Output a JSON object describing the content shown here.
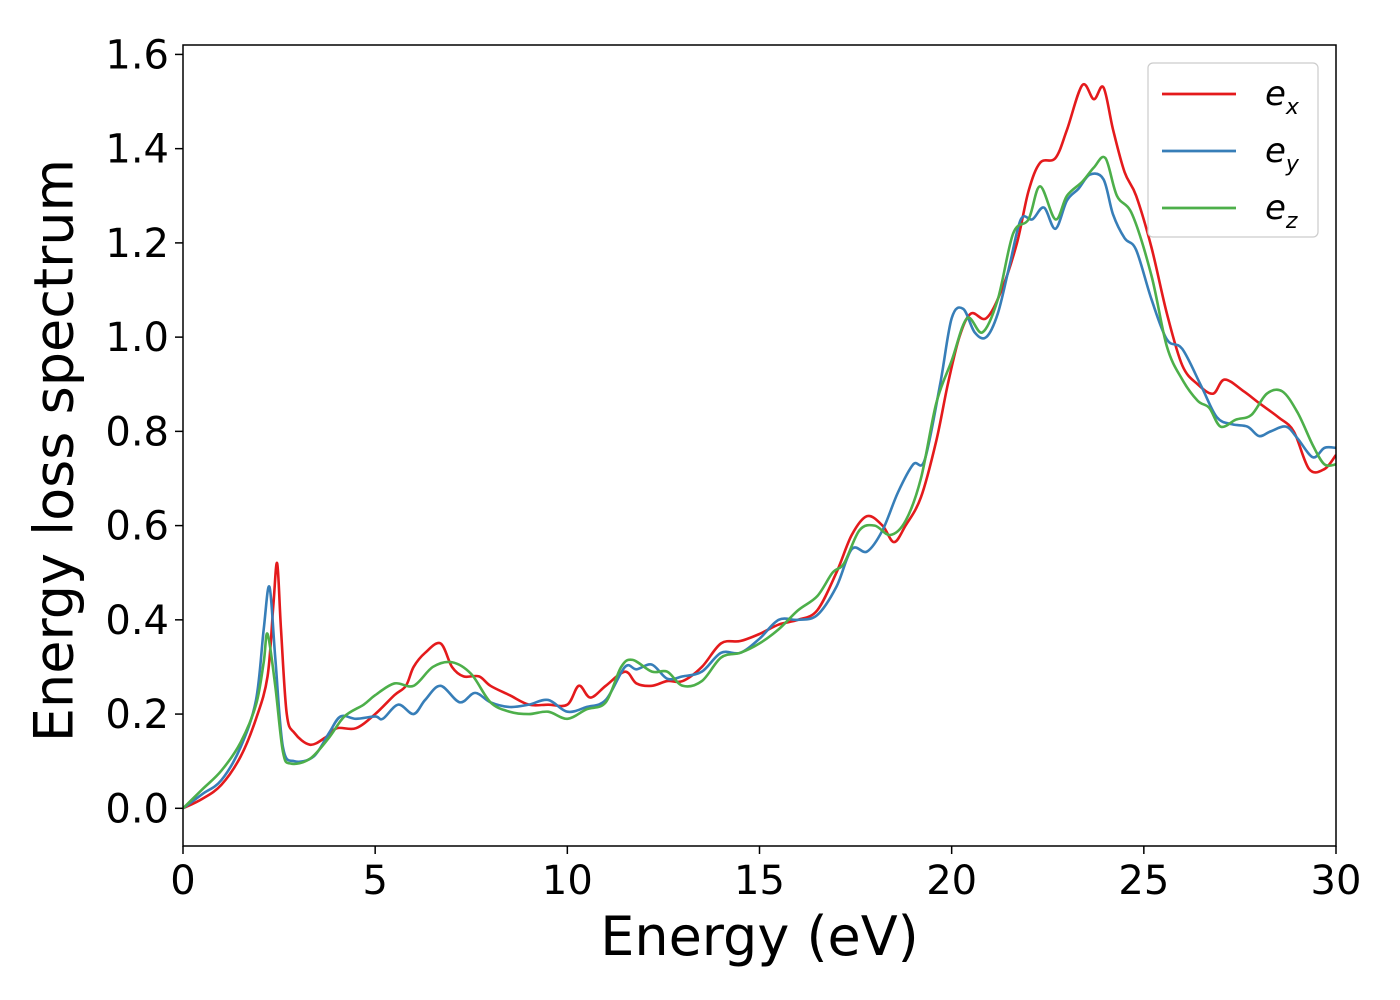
{
  "colors": {
    "e_x": "#e41a1c",
    "e_y": "#377eb8",
    "e_z": "#4daf4a",
    "axis": "#000000"
  },
  "chart_data": {
    "type": "line",
    "xlabel": "Energy (eV)",
    "ylabel": "Energy loss spectrum",
    "xlim": [
      0,
      30
    ],
    "ylim": [
      -0.08,
      1.62
    ],
    "xticks": [
      0,
      5,
      10,
      15,
      20,
      25,
      30
    ],
    "yticks": [
      0.0,
      0.2,
      0.4,
      0.6,
      0.8,
      1.0,
      1.2,
      1.4,
      1.6
    ],
    "grid": false,
    "legend_position": "top-right",
    "series": [
      {
        "name": "e_x",
        "legend_base": "e",
        "legend_sub": "x",
        "color": "#e41a1c",
        "points": [
          [
            0,
            0
          ],
          [
            0.5,
            0.02
          ],
          [
            1.0,
            0.05
          ],
          [
            1.5,
            0.11
          ],
          [
            1.9,
            0.19
          ],
          [
            2.2,
            0.28
          ],
          [
            2.35,
            0.43
          ],
          [
            2.45,
            0.52
          ],
          [
            2.55,
            0.38
          ],
          [
            2.7,
            0.2
          ],
          [
            2.9,
            0.16
          ],
          [
            3.3,
            0.135
          ],
          [
            3.7,
            0.15
          ],
          [
            4.0,
            0.17
          ],
          [
            4.5,
            0.17
          ],
          [
            5.0,
            0.2
          ],
          [
            5.5,
            0.24
          ],
          [
            5.8,
            0.26
          ],
          [
            6.0,
            0.3
          ],
          [
            6.3,
            0.33
          ],
          [
            6.7,
            0.35
          ],
          [
            7.0,
            0.3
          ],
          [
            7.3,
            0.28
          ],
          [
            7.7,
            0.28
          ],
          [
            8.0,
            0.26
          ],
          [
            8.5,
            0.24
          ],
          [
            9.0,
            0.22
          ],
          [
            9.5,
            0.22
          ],
          [
            10.0,
            0.22
          ],
          [
            10.3,
            0.26
          ],
          [
            10.6,
            0.235
          ],
          [
            11.0,
            0.26
          ],
          [
            11.5,
            0.29
          ],
          [
            11.8,
            0.265
          ],
          [
            12.2,
            0.26
          ],
          [
            12.6,
            0.27
          ],
          [
            13.0,
            0.27
          ],
          [
            13.5,
            0.3
          ],
          [
            14.0,
            0.35
          ],
          [
            14.5,
            0.355
          ],
          [
            15.0,
            0.37
          ],
          [
            15.5,
            0.39
          ],
          [
            16.0,
            0.4
          ],
          [
            16.5,
            0.42
          ],
          [
            17.0,
            0.5
          ],
          [
            17.4,
            0.58
          ],
          [
            17.8,
            0.62
          ],
          [
            18.2,
            0.6
          ],
          [
            18.5,
            0.565
          ],
          [
            18.8,
            0.6
          ],
          [
            19.2,
            0.66
          ],
          [
            19.6,
            0.78
          ],
          [
            19.9,
            0.9
          ],
          [
            20.2,
            1.0
          ],
          [
            20.5,
            1.05
          ],
          [
            20.9,
            1.04
          ],
          [
            21.3,
            1.1
          ],
          [
            21.7,
            1.2
          ],
          [
            22.0,
            1.31
          ],
          [
            22.3,
            1.37
          ],
          [
            22.7,
            1.38
          ],
          [
            23.0,
            1.44
          ],
          [
            23.4,
            1.535
          ],
          [
            23.7,
            1.505
          ],
          [
            23.95,
            1.53
          ],
          [
            24.2,
            1.44
          ],
          [
            24.5,
            1.35
          ],
          [
            24.8,
            1.3
          ],
          [
            25.2,
            1.19
          ],
          [
            25.6,
            1.05
          ],
          [
            26.0,
            0.94
          ],
          [
            26.4,
            0.9
          ],
          [
            26.8,
            0.88
          ],
          [
            27.1,
            0.91
          ],
          [
            27.6,
            0.885
          ],
          [
            28.0,
            0.86
          ],
          [
            28.5,
            0.83
          ],
          [
            28.9,
            0.8
          ],
          [
            29.3,
            0.72
          ],
          [
            29.7,
            0.72
          ],
          [
            30.0,
            0.75
          ]
        ]
      },
      {
        "name": "e_y",
        "legend_base": "e",
        "legend_sub": "y",
        "color": "#377eb8",
        "points": [
          [
            0,
            0
          ],
          [
            0.5,
            0.03
          ],
          [
            1.0,
            0.06
          ],
          [
            1.5,
            0.13
          ],
          [
            1.9,
            0.23
          ],
          [
            2.1,
            0.38
          ],
          [
            2.25,
            0.47
          ],
          [
            2.4,
            0.32
          ],
          [
            2.6,
            0.13
          ],
          [
            2.9,
            0.1
          ],
          [
            3.4,
            0.11
          ],
          [
            3.8,
            0.16
          ],
          [
            4.1,
            0.195
          ],
          [
            4.5,
            0.19
          ],
          [
            5.0,
            0.195
          ],
          [
            5.2,
            0.19
          ],
          [
            5.6,
            0.22
          ],
          [
            6.0,
            0.2
          ],
          [
            6.3,
            0.23
          ],
          [
            6.7,
            0.26
          ],
          [
            7.2,
            0.225
          ],
          [
            7.6,
            0.245
          ],
          [
            8.0,
            0.225
          ],
          [
            8.5,
            0.215
          ],
          [
            9.0,
            0.22
          ],
          [
            9.5,
            0.23
          ],
          [
            10.0,
            0.205
          ],
          [
            10.5,
            0.215
          ],
          [
            11.0,
            0.23
          ],
          [
            11.5,
            0.3
          ],
          [
            11.8,
            0.295
          ],
          [
            12.2,
            0.305
          ],
          [
            12.6,
            0.275
          ],
          [
            13.0,
            0.28
          ],
          [
            13.5,
            0.29
          ],
          [
            14.0,
            0.33
          ],
          [
            14.5,
            0.33
          ],
          [
            15.0,
            0.36
          ],
          [
            15.5,
            0.4
          ],
          [
            16.0,
            0.4
          ],
          [
            16.5,
            0.41
          ],
          [
            17.0,
            0.47
          ],
          [
            17.4,
            0.55
          ],
          [
            17.8,
            0.545
          ],
          [
            18.2,
            0.59
          ],
          [
            18.6,
            0.67
          ],
          [
            19.0,
            0.73
          ],
          [
            19.3,
            0.74
          ],
          [
            19.7,
            0.9
          ],
          [
            20.0,
            1.04
          ],
          [
            20.3,
            1.06
          ],
          [
            20.6,
            1.01
          ],
          [
            20.9,
            1.0
          ],
          [
            21.2,
            1.05
          ],
          [
            21.5,
            1.15
          ],
          [
            21.8,
            1.25
          ],
          [
            22.1,
            1.25
          ],
          [
            22.4,
            1.275
          ],
          [
            22.7,
            1.23
          ],
          [
            23.0,
            1.29
          ],
          [
            23.3,
            1.315
          ],
          [
            23.6,
            1.345
          ],
          [
            23.95,
            1.335
          ],
          [
            24.2,
            1.26
          ],
          [
            24.5,
            1.21
          ],
          [
            24.8,
            1.185
          ],
          [
            25.2,
            1.08
          ],
          [
            25.6,
            0.995
          ],
          [
            26.0,
            0.975
          ],
          [
            26.5,
            0.895
          ],
          [
            26.9,
            0.83
          ],
          [
            27.3,
            0.815
          ],
          [
            27.7,
            0.81
          ],
          [
            28.0,
            0.79
          ],
          [
            28.3,
            0.8
          ],
          [
            28.7,
            0.81
          ],
          [
            29.0,
            0.785
          ],
          [
            29.4,
            0.745
          ],
          [
            29.7,
            0.765
          ],
          [
            30.0,
            0.765
          ]
        ]
      },
      {
        "name": "e_z",
        "legend_base": "e",
        "legend_sub": "z",
        "color": "#4daf4a",
        "points": [
          [
            0,
            0
          ],
          [
            0.5,
            0.04
          ],
          [
            1.0,
            0.08
          ],
          [
            1.5,
            0.14
          ],
          [
            1.9,
            0.22
          ],
          [
            2.1,
            0.31
          ],
          [
            2.2,
            0.37
          ],
          [
            2.4,
            0.26
          ],
          [
            2.6,
            0.12
          ],
          [
            2.8,
            0.095
          ],
          [
            3.3,
            0.105
          ],
          [
            3.8,
            0.15
          ],
          [
            4.2,
            0.195
          ],
          [
            4.7,
            0.22
          ],
          [
            5.0,
            0.24
          ],
          [
            5.5,
            0.265
          ],
          [
            6.0,
            0.26
          ],
          [
            6.5,
            0.3
          ],
          [
            7.0,
            0.31
          ],
          [
            7.5,
            0.285
          ],
          [
            8.0,
            0.225
          ],
          [
            8.5,
            0.205
          ],
          [
            9.0,
            0.2
          ],
          [
            9.5,
            0.205
          ],
          [
            10.0,
            0.19
          ],
          [
            10.5,
            0.21
          ],
          [
            11.0,
            0.225
          ],
          [
            11.4,
            0.3
          ],
          [
            11.7,
            0.315
          ],
          [
            12.2,
            0.29
          ],
          [
            12.6,
            0.29
          ],
          [
            13.0,
            0.26
          ],
          [
            13.5,
            0.27
          ],
          [
            14.0,
            0.32
          ],
          [
            14.5,
            0.33
          ],
          [
            15.0,
            0.35
          ],
          [
            15.5,
            0.38
          ],
          [
            16.0,
            0.42
          ],
          [
            16.5,
            0.45
          ],
          [
            16.9,
            0.5
          ],
          [
            17.2,
            0.52
          ],
          [
            17.6,
            0.59
          ],
          [
            18.0,
            0.6
          ],
          [
            18.4,
            0.58
          ],
          [
            18.8,
            0.61
          ],
          [
            19.2,
            0.7
          ],
          [
            19.6,
            0.86
          ],
          [
            20.0,
            0.95
          ],
          [
            20.4,
            1.04
          ],
          [
            20.8,
            1.01
          ],
          [
            21.2,
            1.08
          ],
          [
            21.6,
            1.22
          ],
          [
            22.0,
            1.25
          ],
          [
            22.3,
            1.32
          ],
          [
            22.7,
            1.25
          ],
          [
            23.0,
            1.3
          ],
          [
            23.4,
            1.33
          ],
          [
            23.7,
            1.36
          ],
          [
            24.0,
            1.38
          ],
          [
            24.3,
            1.3
          ],
          [
            24.7,
            1.26
          ],
          [
            25.2,
            1.13
          ],
          [
            25.6,
            0.98
          ],
          [
            26.0,
            0.91
          ],
          [
            26.4,
            0.865
          ],
          [
            26.7,
            0.85
          ],
          [
            27.0,
            0.81
          ],
          [
            27.4,
            0.825
          ],
          [
            27.8,
            0.835
          ],
          [
            28.2,
            0.88
          ],
          [
            28.6,
            0.885
          ],
          [
            29.0,
            0.84
          ],
          [
            29.4,
            0.77
          ],
          [
            29.7,
            0.73
          ],
          [
            30.0,
            0.73
          ]
        ]
      }
    ]
  }
}
